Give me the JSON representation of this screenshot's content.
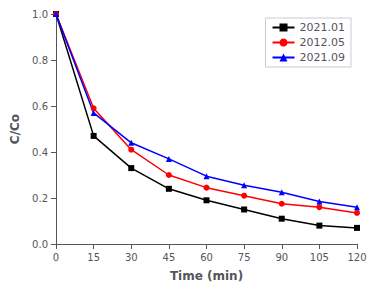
{
  "chart_data": {
    "type": "line",
    "x": [
      0,
      15,
      30,
      45,
      60,
      75,
      90,
      105,
      120
    ],
    "series": [
      {
        "name": "2021.01",
        "color": "#000000",
        "marker": "square",
        "values": [
          1.0,
          0.47,
          0.33,
          0.24,
          0.19,
          0.15,
          0.11,
          0.08,
          0.07
        ]
      },
      {
        "name": "2012.05",
        "color": "#ff0000",
        "marker": "circle",
        "values": [
          1.0,
          0.59,
          0.41,
          0.3,
          0.245,
          0.21,
          0.175,
          0.16,
          0.135
        ]
      },
      {
        "name": "2021.09",
        "color": "#0000ff",
        "marker": "triangle",
        "values": [
          1.0,
          0.57,
          0.44,
          0.37,
          0.295,
          0.255,
          0.225,
          0.185,
          0.16
        ]
      }
    ],
    "xlabel": "Time (min)",
    "ylabel": "C/Co",
    "xlim": [
      0,
      120
    ],
    "ylim": [
      0.0,
      1.0
    ],
    "xticks": [
      0,
      15,
      30,
      45,
      60,
      75,
      90,
      105,
      120
    ],
    "yticks": [
      {
        "value": 0.0,
        "label": "0.0"
      },
      0.2,
      0.4,
      0.6,
      0.8,
      {
        "value": 1.0,
        "label": "1.0"
      }
    ],
    "legend": "upper right",
    "grid": false
  }
}
